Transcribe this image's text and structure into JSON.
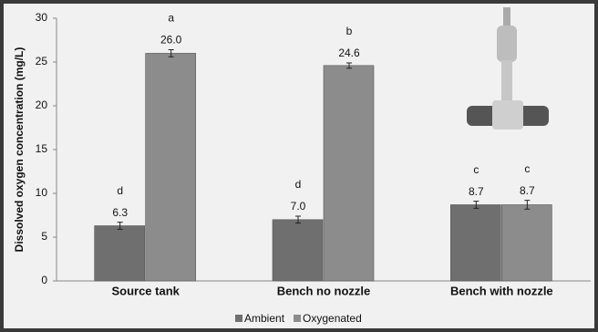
{
  "chart_data": {
    "type": "bar",
    "y_label": "Dissolved oxygen concentration (mg/L)",
    "categories": [
      "Source tank",
      "Bench no nozzle",
      "Bench with nozzle"
    ],
    "series": [
      {
        "name": "Ambient",
        "color": "#6f6f6f",
        "values": [
          6.3,
          7,
          8.7
        ],
        "value_labels": [
          "6.3",
          "7.0",
          "8.7"
        ],
        "errors": [
          0.4,
          0.4,
          0.4
        ],
        "letters": [
          "d",
          "d",
          "c"
        ]
      },
      {
        "name": "Oxygenated",
        "color": "#8c8c8c",
        "values": [
          26,
          24.6,
          8.7
        ],
        "value_labels": [
          "26.0",
          "24.6",
          "8.7"
        ],
        "errors": [
          0.4,
          0.3,
          0.5
        ],
        "letters": [
          "a",
          "b",
          "c"
        ]
      }
    ],
    "ylim": [
      0,
      30
    ],
    "yticks": [
      0,
      5,
      10,
      15,
      20,
      25,
      30
    ],
    "grid": false,
    "legend": "bottom"
  }
}
